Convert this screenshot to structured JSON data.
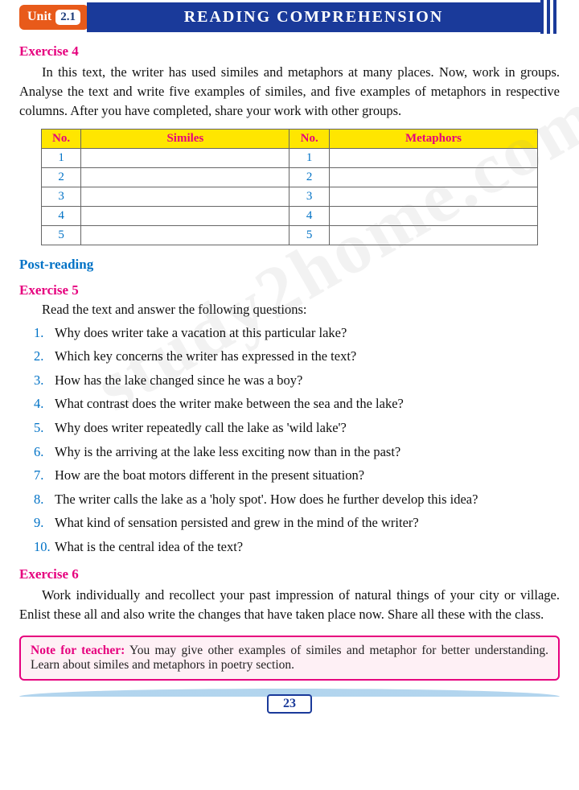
{
  "header": {
    "unit_label": "Unit",
    "unit_number": "2.1",
    "title": "READING COMPREHENSION"
  },
  "exercise4": {
    "title": "Exercise 4",
    "text": "In this text, the writer has used similes and metaphors at many places. Now, work in groups. Analyse the text and write five examples of similes, and five examples of metaphors in respective columns. After you have completed, share your work with other groups.",
    "table": {
      "headers": [
        "No.",
        "Similes",
        "No.",
        "Metaphors"
      ],
      "rows": [
        [
          "1",
          "",
          "1",
          ""
        ],
        [
          "2",
          "",
          "2",
          ""
        ],
        [
          "3",
          "",
          "3",
          ""
        ],
        [
          "4",
          "",
          "4",
          ""
        ],
        [
          "5",
          "",
          "5",
          ""
        ]
      ],
      "header_bg": "#ffe600",
      "header_color": "#e6007e",
      "num_color": "#0072c6"
    }
  },
  "post_reading": {
    "title": "Post-reading"
  },
  "exercise5": {
    "title": "Exercise 5",
    "lead": "Read the text and answer the following questions:",
    "questions": [
      "Why does writer take a vacation at this particular lake?",
      "Which key concerns the writer has expressed in the text?",
      "How has the lake changed since he was a boy?",
      "What contrast does the writer make between the sea and the lake?",
      "Why does writer repeatedly call the lake as 'wild lake'?",
      "Why is the arriving at the lake less exciting now than in the past?",
      "How are the boat motors different in the present situation?",
      "The writer calls the lake as a 'holy spot'. How does he further develop this idea?",
      "What kind of sensation persisted and grew in the mind of the writer?",
      "What is the central idea of the text?"
    ]
  },
  "exercise6": {
    "title": "Exercise 6",
    "text": "Work individually and recollect your past impression of natural things of your city or village. Enlist these all and also write the changes that have taken place now. Share all these with the class."
  },
  "note": {
    "label": "Note for teacher:",
    "text": "You may give other examples of similes and metaphor for better understanding. Learn about similes and metaphors in poetry section."
  },
  "page_number": "23",
  "watermark": "study2home.com",
  "colors": {
    "orange": "#e85a1a",
    "blue_header": "#1a3a9a",
    "magenta": "#e6007e",
    "blue_text": "#0072c6"
  }
}
